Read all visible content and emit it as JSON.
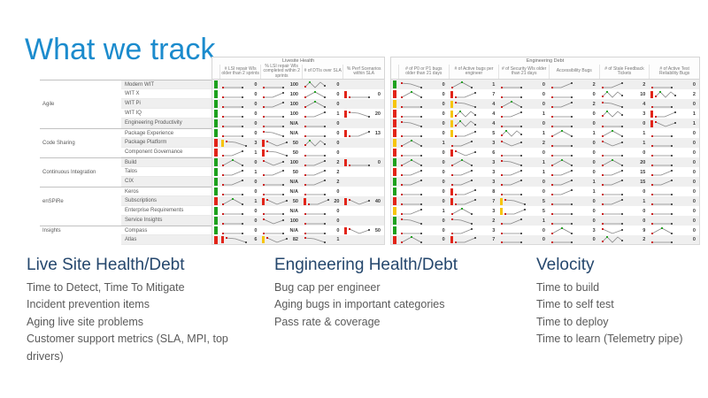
{
  "slide": {
    "title": "What we track"
  },
  "colors": {
    "status_green": "#1da11d",
    "status_red": "#e22418",
    "status_yellow": "#f6c50d",
    "accent_blue": "#1b8bcd",
    "heading_navy": "#25476d",
    "spark_line": "#888888",
    "spark_dot_red": "#cc2222",
    "spark_dot_green": "#27a327"
  },
  "table": {
    "sections": [
      {
        "title": "Livesite Health",
        "columns": [
          "# LSI repair WIs older than 2 sprints",
          "% LSI repair WIs completed within 2 sprints",
          "# of DTIs over SLA",
          "% Perf Scenarios within SLA"
        ]
      },
      {
        "title": "Engineering Debt",
        "columns": [
          "# of P0 or P1 bugs older than 21 days",
          "# of Active bugs per engineer",
          "# of Security WIs older than 21 days",
          "Accessibility Bugs",
          "# of Stale Feedback Tickets",
          "# of Active Test Reliability Bugs"
        ]
      }
    ],
    "groups": [
      {
        "label": "Agile",
        "span": 5
      },
      {
        "label": "Code Sharing",
        "span": 3
      },
      {
        "label": "Continuous Integration",
        "span": 3
      },
      {
        "label": "enSPiRe",
        "span": 4
      },
      {
        "label": "Insights",
        "span": 2
      }
    ],
    "rows": [
      {
        "team": "Modern WIT",
        "ls_status": "G",
        "eng_status": "G",
        "ls": [
          "|flat|0",
          "|flat|100",
          "|zig|0",
          ""
        ],
        "eng": [
          "|fall|0",
          "|peak|1",
          "|flat|0",
          "|rise|2",
          "|rise|2",
          "|flat|0"
        ]
      },
      {
        "team": "WIT X",
        "ls_status": "G",
        "eng_status": "R",
        "ls": [
          "|flat|0",
          "|rise|100",
          "|peak|0",
          "R|flat|0"
        ],
        "eng": [
          "|peak|0",
          "R|rise|7",
          "|flat|0",
          "|flat|0",
          "|zig|10",
          "R|zig|2"
        ]
      },
      {
        "team": "WIT Pi",
        "ls_status": "G",
        "eng_status": "Y",
        "ls": [
          "|flat|0",
          "|rise|100",
          "|peak|0",
          ""
        ],
        "eng": [
          "|flat|0",
          "Y|fall|4",
          "|peak|0",
          "|rise|2",
          "|fall|4",
          "|flat|0"
        ]
      },
      {
        "team": "WIT IQ",
        "ls_status": "G",
        "eng_status": "R",
        "ls": [
          "|flat|0",
          "|flat|100",
          "|rise|1",
          "R|fall|20"
        ],
        "eng": [
          "|flat|0",
          "Y|zig|4",
          "|rise|1",
          "|flat|0",
          "|zig|3",
          "R|rise|1"
        ]
      },
      {
        "team": "Engineering Productivity",
        "ls_status": "G",
        "eng_status": "R",
        "ls": [
          "|flat|0",
          "|flat|N/A",
          "|flat|0",
          ""
        ],
        "eng": [
          "|fall|0",
          "Y|zig|4",
          "|flat|0",
          "|flat|0",
          "|flat|0",
          "R|dip|1"
        ]
      },
      {
        "team": "Package Experience",
        "ls_status": "G",
        "eng_status": "R",
        "ls": [
          "|flat|0",
          "|fall|N/A",
          "|flat|0",
          "R|rise|13"
        ],
        "eng": [
          "|flat|0",
          "Y|rise|5",
          "|zig|1",
          "|peak|1",
          "|peak|1",
          "|flat|0"
        ]
      },
      {
        "team": "Package Platform",
        "ls_status": "R",
        "eng_status": "Y",
        "ls": [
          "Y|fall|3",
          "R|dip|50",
          "|zig|0",
          ""
        ],
        "eng": [
          "|peak|1",
          "|rise|3",
          "|dip|2",
          "|flat|0",
          "|dip|1",
          "|flat|0"
        ]
      },
      {
        "team": "Component Governance",
        "ls_status": "R",
        "eng_status": "R",
        "ls": [
          "|rise|1",
          "R|fall|50",
          "|flat|0",
          ""
        ],
        "eng": [
          "|flat|0",
          "R|dip|6",
          "|flat|0",
          "|flat|0",
          "|flat|0",
          "|flat|0"
        ]
      },
      {
        "team": "Build",
        "ls_status": "G",
        "eng_status": "G",
        "ls": [
          "|peak|0",
          "|dip|100",
          "|rise|2",
          "R|flat|0"
        ],
        "eng": [
          "|peak|0",
          "|peak|3",
          "|fall|1",
          "|peak|0",
          "|peak|20",
          "|flat|0"
        ]
      },
      {
        "team": "Talos",
        "ls_status": "G",
        "eng_status": "R",
        "ls": [
          "|rise|1",
          "|rise|50",
          "|rise|2",
          ""
        ],
        "eng": [
          "|rise|0",
          "|rise|3",
          "|rise|1",
          "|rise|0",
          "|rise|15",
          "|rise|0"
        ]
      },
      {
        "team": "CIX",
        "ls_status": "G",
        "eng_status": "G",
        "ls": [
          "|rise|0",
          "|flat|N/A",
          "|rise|2",
          ""
        ],
        "eng": [
          "|rise|0",
          "|rise|3",
          "|rise|0",
          "|rise|1",
          "|rise|15",
          "|rise|0"
        ]
      },
      {
        "team": "Keros",
        "ls_status": "G",
        "eng_status": "G",
        "ls": [
          "|flat|0",
          "|flat|N/A",
          "|flat|0",
          ""
        ],
        "eng": [
          "|flat|0",
          "R|rise|8",
          "|flat|0",
          "|rise|1",
          "|flat|0",
          "|flat|0"
        ]
      },
      {
        "team": "Subscriptions",
        "ls_status": "R",
        "eng_status": "R",
        "ls": [
          "|peak|1",
          "R|dip|50",
          "R|rise|20",
          "R|dip|40"
        ],
        "eng": [
          "|flat|0",
          "R|rise|7",
          "Y|fall|5",
          "|flat|0",
          "|rise|1",
          "|flat|0"
        ]
      },
      {
        "team": "Enterprise Requirements",
        "ls_status": "G",
        "eng_status": "Y",
        "ls": [
          "|flat|0",
          "|flat|N/A",
          "|flat|0",
          ""
        ],
        "eng": [
          "|rise|1",
          "|peak|3",
          "Y|rise|5",
          "|flat|0",
          "|flat|0",
          "|flat|0"
        ]
      },
      {
        "team": "Service Insights",
        "ls_status": "G",
        "eng_status": "G",
        "ls": [
          "|flat|0",
          "|dip|100",
          "|flat|0",
          ""
        ],
        "eng": [
          "|fall|0",
          "|fall|2",
          "|rise|1",
          "|flat|0",
          "|flat|0",
          "|flat|0"
        ]
      },
      {
        "team": "Compass",
        "ls_status": "G",
        "eng_status": "G",
        "ls": [
          "|flat|0",
          "|flat|N/A",
          "|flat|0",
          "R|dip|50"
        ],
        "eng": [
          "|flat|0",
          "|rise|3",
          "|flat|0",
          "|peak|3",
          "|dip|9",
          "|peak|0"
        ]
      },
      {
        "team": "Atlas",
        "ls_status": "R",
        "eng_status": "R",
        "ls": [
          "R|fall|6",
          "Y|dip|82",
          "|fall|1",
          ""
        ],
        "eng": [
          "|peak|0",
          "R|rise|7",
          "|flat|0",
          "|flat|0",
          "|zig|2",
          "|flat|0"
        ]
      }
    ]
  },
  "panels": [
    {
      "title": "Live Site Health/Debt",
      "items": [
        "Time to Detect, Time To Mitigate",
        "Incident prevention items",
        "Aging live site problems",
        "Customer support metrics (SLA, MPI, top drivers)"
      ]
    },
    {
      "title": "Engineering Health/Debt",
      "items": [
        "Bug cap per engineer",
        "Aging bugs in important categories",
        "Pass rate & coverage"
      ]
    },
    {
      "title": "Velocity",
      "items": [
        "Time to build",
        "Time to self test",
        "Time to deploy",
        "Time to learn (Telemetry pipe)"
      ]
    }
  ]
}
